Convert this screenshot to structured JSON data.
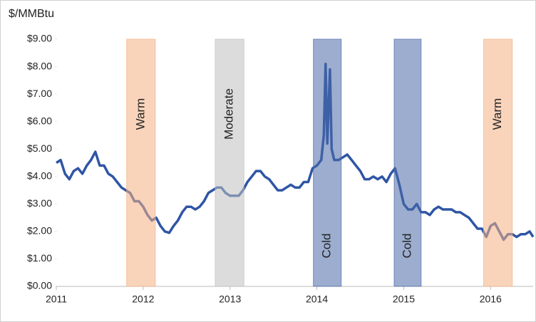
{
  "chart_data": {
    "type": "line",
    "y_label": "$/MMBtu",
    "color": "#2f55a4",
    "x": [
      2011.0,
      2011.05,
      2011.1,
      2011.15,
      2011.2,
      2011.25,
      2011.3,
      2011.35,
      2011.4,
      2011.45,
      2011.5,
      2011.55,
      2011.6,
      2011.65,
      2011.7,
      2011.75,
      2011.8,
      2011.85,
      2011.9,
      2011.95,
      2012.0,
      2012.05,
      2012.1,
      2012.15,
      2012.2,
      2012.25,
      2012.3,
      2012.35,
      2012.4,
      2012.45,
      2012.5,
      2012.55,
      2012.6,
      2012.65,
      2012.7,
      2012.75,
      2012.8,
      2012.85,
      2012.9,
      2012.95,
      2013.0,
      2013.05,
      2013.1,
      2013.15,
      2013.2,
      2013.25,
      2013.3,
      2013.35,
      2013.4,
      2013.45,
      2013.5,
      2013.55,
      2013.6,
      2013.65,
      2013.7,
      2013.75,
      2013.8,
      2013.85,
      2013.9,
      2013.95,
      2014.0,
      2014.05,
      2014.08,
      2014.1,
      2014.12,
      2014.15,
      2014.17,
      2014.2,
      2014.25,
      2014.3,
      2014.35,
      2014.4,
      2014.45,
      2014.5,
      2014.55,
      2014.6,
      2014.65,
      2014.7,
      2014.75,
      2014.8,
      2014.85,
      2014.9,
      2014.95,
      2015.0,
      2015.05,
      2015.1,
      2015.15,
      2015.2,
      2015.25,
      2015.3,
      2015.35,
      2015.4,
      2015.45,
      2015.5,
      2015.55,
      2015.6,
      2015.65,
      2015.7,
      2015.75,
      2015.8,
      2015.85,
      2015.9,
      2015.95,
      2016.0,
      2016.05,
      2016.1,
      2016.15,
      2016.2,
      2016.25,
      2016.3,
      2016.35,
      2016.4,
      2016.45,
      2016.49
    ],
    "values": [
      4.5,
      4.6,
      4.1,
      3.9,
      4.2,
      4.3,
      4.1,
      4.4,
      4.6,
      4.9,
      4.4,
      4.4,
      4.1,
      4.0,
      3.8,
      3.6,
      3.5,
      3.4,
      3.1,
      3.1,
      2.9,
      2.6,
      2.4,
      2.5,
      2.2,
      2.0,
      1.95,
      2.2,
      2.4,
      2.7,
      2.9,
      2.9,
      2.8,
      2.9,
      3.1,
      3.4,
      3.5,
      3.6,
      3.6,
      3.4,
      3.3,
      3.3,
      3.3,
      3.5,
      3.8,
      4.0,
      4.2,
      4.2,
      4.0,
      3.9,
      3.7,
      3.5,
      3.5,
      3.6,
      3.7,
      3.6,
      3.6,
      3.8,
      3.8,
      4.3,
      4.4,
      4.6,
      5.5,
      8.1,
      5.2,
      7.9,
      5.0,
      4.6,
      4.6,
      4.7,
      4.8,
      4.6,
      4.4,
      4.2,
      3.9,
      3.9,
      4.0,
      3.9,
      4.0,
      3.8,
      4.1,
      4.3,
      3.7,
      3.0,
      2.8,
      2.8,
      3.0,
      2.7,
      2.7,
      2.6,
      2.8,
      2.9,
      2.8,
      2.8,
      2.8,
      2.7,
      2.7,
      2.6,
      2.5,
      2.3,
      2.1,
      2.1,
      1.8,
      2.2,
      2.3,
      2.0,
      1.7,
      1.9,
      1.9,
      1.8,
      1.9,
      1.9,
      2.0,
      1.8
    ],
    "xlim": [
      2011,
      2016.49
    ],
    "xticks": [
      2011,
      2012,
      2013,
      2014,
      2015,
      2016
    ],
    "ylim": [
      0,
      9
    ],
    "yticks": [
      {
        "value": 0,
        "label": "$0.00"
      },
      {
        "value": 1,
        "label": "$1.00"
      },
      {
        "value": 2,
        "label": "$2.00"
      },
      {
        "value": 3,
        "label": "$3.00"
      },
      {
        "value": 4,
        "label": "$4.00"
      },
      {
        "value": 5,
        "label": "$5.00"
      },
      {
        "value": 6,
        "label": "$6.00"
      },
      {
        "value": 7,
        "label": "$7.00"
      },
      {
        "value": 8,
        "label": "$8.00"
      },
      {
        "value": 9,
        "label": "$9.00"
      }
    ],
    "bands": [
      {
        "label": "Warm",
        "start": 2011.81,
        "end": 2012.14,
        "color": "#f4b183",
        "label_position": "top"
      },
      {
        "label": "Moderate",
        "start": 2012.83,
        "end": 2013.16,
        "color": "#bfbfbf",
        "label_position": "top"
      },
      {
        "label": "Cold",
        "start": 2013.96,
        "end": 2014.28,
        "color": "#4a6aa8",
        "label_position": "bottom"
      },
      {
        "label": "Cold",
        "start": 2014.89,
        "end": 2015.2,
        "color": "#4a6aa8",
        "label_position": "bottom"
      },
      {
        "label": "Warm",
        "start": 2015.92,
        "end": 2016.25,
        "color": "#f4b183",
        "label_position": "top"
      }
    ]
  }
}
